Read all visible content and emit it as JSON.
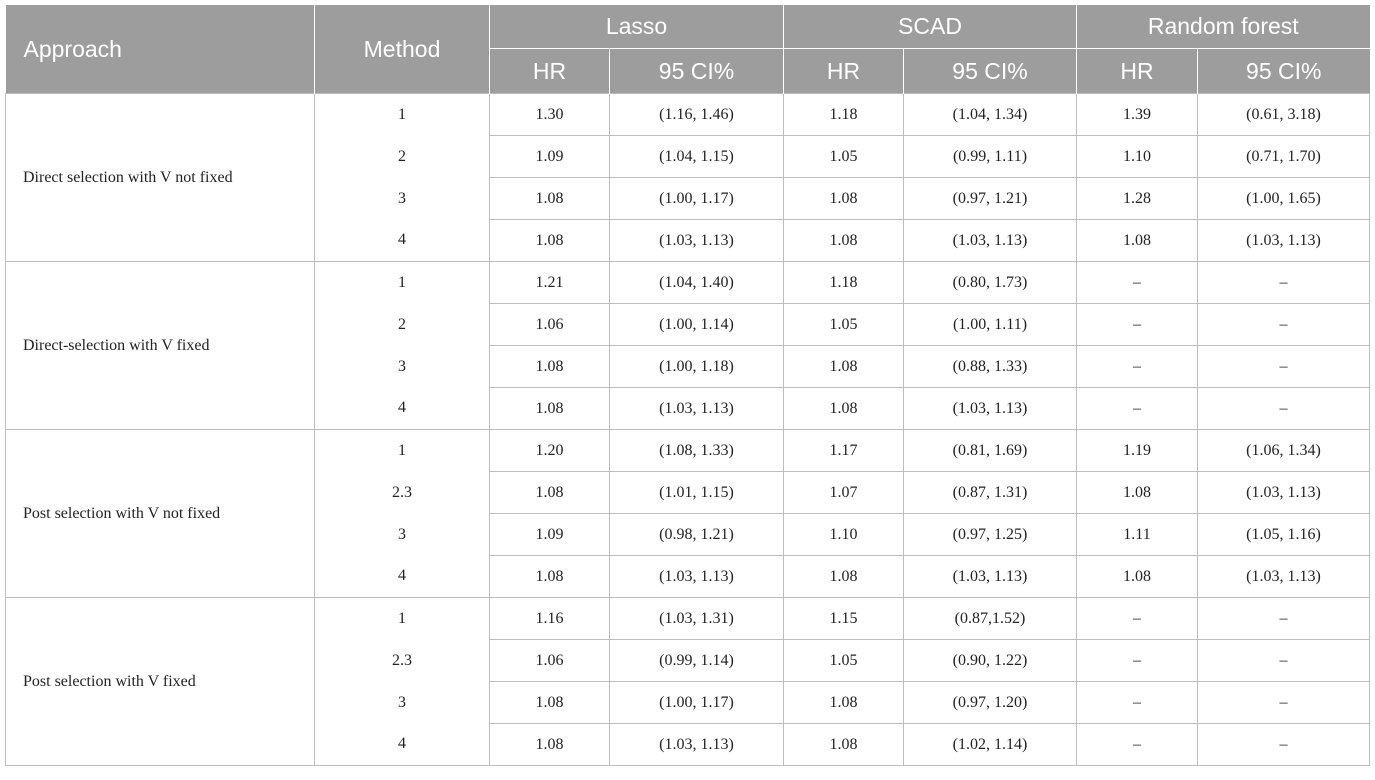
{
  "header": {
    "approach": "Approach",
    "method": "Method",
    "groups": [
      "Lasso",
      "SCAD",
      "Random forest"
    ],
    "sub": [
      "HR",
      "95 CI%",
      "HR",
      "95 CI%",
      "HR",
      "95 CI%"
    ]
  },
  "sections": [
    {
      "approach": "Direct selection with V not fixed",
      "rows": [
        {
          "method": "1",
          "lasso_hr": "1.30",
          "lasso_ci": "(1.16, 1.46)",
          "scad_hr": "1.18",
          "scad_ci": "(1.04, 1.34)",
          "rf_hr": "1.39",
          "rf_ci": "(0.61, 3.18)"
        },
        {
          "method": "2",
          "lasso_hr": "1.09",
          "lasso_ci": "(1.04, 1.15)",
          "scad_hr": "1.05",
          "scad_ci": "(0.99, 1.11)",
          "rf_hr": "1.10",
          "rf_ci": "(0.71, 1.70)"
        },
        {
          "method": "3",
          "lasso_hr": "1.08",
          "lasso_ci": "(1.00, 1.17)",
          "scad_hr": "1.08",
          "scad_ci": "(0.97, 1.21)",
          "rf_hr": "1.28",
          "rf_ci": "(1.00, 1.65)"
        },
        {
          "method": "4",
          "lasso_hr": "1.08",
          "lasso_ci": "(1.03, 1.13)",
          "scad_hr": "1.08",
          "scad_ci": "(1.03, 1.13)",
          "rf_hr": "1.08",
          "rf_ci": "(1.03, 1.13)"
        }
      ]
    },
    {
      "approach": "Direct-selection with V fixed",
      "rows": [
        {
          "method": "1",
          "lasso_hr": "1.21",
          "lasso_ci": "(1.04, 1.40)",
          "scad_hr": "1.18",
          "scad_ci": "(0.80, 1.73)",
          "rf_hr": "–",
          "rf_ci": "–"
        },
        {
          "method": "2",
          "lasso_hr": "1.06",
          "lasso_ci": "(1.00, 1.14)",
          "scad_hr": "1.05",
          "scad_ci": "(1.00, 1.11)",
          "rf_hr": "–",
          "rf_ci": "–"
        },
        {
          "method": "3",
          "lasso_hr": "1.08",
          "lasso_ci": "(1.00, 1.18)",
          "scad_hr": "1.08",
          "scad_ci": "(0.88, 1.33)",
          "rf_hr": "–",
          "rf_ci": "–"
        },
        {
          "method": "4",
          "lasso_hr": "1.08",
          "lasso_ci": "(1.03, 1.13)",
          "scad_hr": "1.08",
          "scad_ci": "(1.03, 1.13)",
          "rf_hr": "–",
          "rf_ci": "–"
        }
      ]
    },
    {
      "approach": "Post selection with V not fixed",
      "rows": [
        {
          "method": "1",
          "lasso_hr": "1.20",
          "lasso_ci": "(1.08, 1.33)",
          "scad_hr": "1.17",
          "scad_ci": "(0.81, 1.69)",
          "rf_hr": "1.19",
          "rf_ci": "(1.06, 1.34)"
        },
        {
          "method": "2.3",
          "lasso_hr": "1.08",
          "lasso_ci": "(1.01, 1.15)",
          "scad_hr": "1.07",
          "scad_ci": "(0.87, 1.31)",
          "rf_hr": "1.08",
          "rf_ci": "(1.03, 1.13)"
        },
        {
          "method": "3",
          "lasso_hr": "1.09",
          "lasso_ci": "(0.98, 1.21)",
          "scad_hr": "1.10",
          "scad_ci": "(0.97, 1.25)",
          "rf_hr": "1.11",
          "rf_ci": "(1.05, 1.16)"
        },
        {
          "method": "4",
          "lasso_hr": "1.08",
          "lasso_ci": "(1.03, 1.13)",
          "scad_hr": "1.08",
          "scad_ci": "(1.03, 1.13)",
          "rf_hr": "1.08",
          "rf_ci": "(1.03, 1.13)"
        }
      ]
    },
    {
      "approach": "Post selection with V fixed",
      "rows": [
        {
          "method": "1",
          "lasso_hr": "1.16",
          "lasso_ci": "(1.03, 1.31)",
          "scad_hr": "1.15",
          "scad_ci": "(0.87,1.52)",
          "rf_hr": "–",
          "rf_ci": "–"
        },
        {
          "method": "2.3",
          "lasso_hr": "1.06",
          "lasso_ci": "(0.99, 1.14)",
          "scad_hr": "1.05",
          "scad_ci": "(0.90, 1.22)",
          "rf_hr": "–",
          "rf_ci": "–"
        },
        {
          "method": "3",
          "lasso_hr": "1.08",
          "lasso_ci": "(1.00, 1.17)",
          "scad_hr": "1.08",
          "scad_ci": "(0.97, 1.20)",
          "rf_hr": "–",
          "rf_ci": "–"
        },
        {
          "method": "4",
          "lasso_hr": "1.08",
          "lasso_ci": "(1.03, 1.13)",
          "scad_hr": "1.08",
          "scad_ci": "(1.02, 1.14)",
          "rf_hr": "–",
          "rf_ci": "–"
        }
      ]
    }
  ]
}
